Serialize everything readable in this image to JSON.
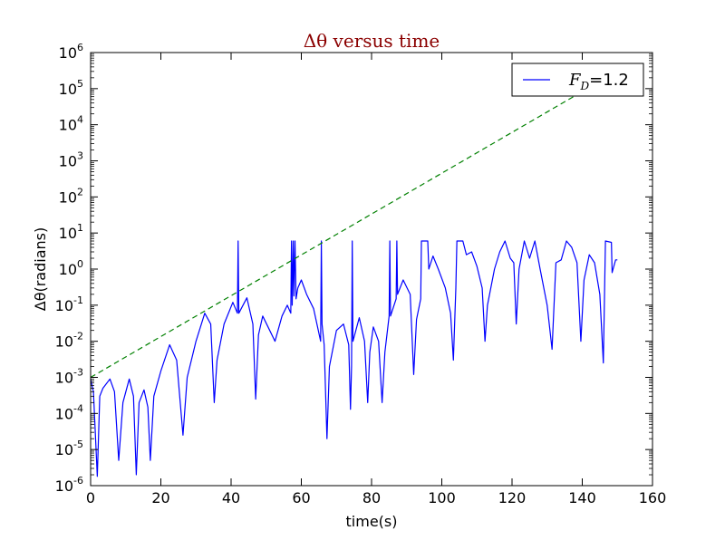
{
  "chart_data": {
    "type": "line",
    "title": "Δθ versus time",
    "xlabel": "time(s)",
    "ylabel": "Δθ(radians)",
    "xlim": [
      0,
      160
    ],
    "ylim": [
      1e-06,
      1000000.0
    ],
    "yscale": "log",
    "grid": false,
    "legend_position": "top-right",
    "x_ticks": [
      0,
      20,
      40,
      60,
      80,
      100,
      120,
      140,
      160
    ],
    "x_tick_labels": [
      "0",
      "20",
      "40",
      "60",
      "80",
      "100",
      "120",
      "140",
      "160"
    ],
    "y_tick_exponents": [
      -6,
      -5,
      -4,
      -3,
      -2,
      -1,
      0,
      1,
      2,
      3,
      4,
      5,
      6
    ],
    "series": [
      {
        "name": "F_D=1.2",
        "legend_label": {
          "main": "F",
          "sub": "D",
          "rest": "=1.2"
        },
        "color": "#0000ff",
        "style": "solid",
        "points": [
          [
            0,
            0.0009
          ],
          [
            0.8,
            0.0004
          ],
          [
            1.9,
            1.8e-06
          ],
          [
            2.6,
            0.0003
          ],
          [
            3.5,
            0.0005
          ],
          [
            5.5,
            0.0009
          ],
          [
            6.8,
            0.0004
          ],
          [
            8,
            5e-06
          ],
          [
            9.2,
            0.0002
          ],
          [
            11,
            0.0009
          ],
          [
            12.2,
            0.0003
          ],
          [
            13,
            2e-06
          ],
          [
            13.8,
            0.0002
          ],
          [
            15.2,
            0.00045
          ],
          [
            16.3,
            0.00015
          ],
          [
            17,
            5e-06
          ],
          [
            18,
            0.0003
          ],
          [
            20,
            0.0015
          ],
          [
            22.5,
            0.008
          ],
          [
            24.5,
            0.003
          ],
          [
            26.3,
            2.5e-05
          ],
          [
            27.5,
            0.001
          ],
          [
            30,
            0.01
          ],
          [
            32.5,
            0.06
          ],
          [
            34.2,
            0.03
          ],
          [
            35.2,
            0.0002
          ],
          [
            36,
            0.003
          ],
          [
            38,
            0.03
          ],
          [
            40.5,
            0.12
          ],
          [
            41.8,
            0.06
          ],
          [
            42,
            6
          ],
          [
            42.2,
            0.06
          ],
          [
            44.5,
            0.16
          ],
          [
            46.2,
            0.03
          ],
          [
            47,
            0.00025
          ],
          [
            47.8,
            0.015
          ],
          [
            49,
            0.05
          ],
          [
            51,
            0.02
          ],
          [
            52.5,
            0.01
          ],
          [
            54.5,
            0.05
          ],
          [
            56,
            0.1
          ],
          [
            57,
            0.06
          ],
          [
            57.2,
            6
          ],
          [
            57.4,
            0.1
          ],
          [
            57.7,
            6
          ],
          [
            57.9,
            0.18
          ],
          [
            58.2,
            6
          ],
          [
            58.5,
            0.15
          ],
          [
            59,
            0.3
          ],
          [
            60,
            0.5
          ],
          [
            61.5,
            0.2
          ],
          [
            63.5,
            0.08
          ],
          [
            65.5,
            0.01
          ],
          [
            65.7,
            6
          ],
          [
            65.9,
            0.03
          ],
          [
            66.5,
            0.008
          ],
          [
            67.3,
            2e-05
          ],
          [
            68,
            0.002
          ],
          [
            70,
            0.02
          ],
          [
            72,
            0.03
          ],
          [
            73.5,
            0.008
          ],
          [
            74,
            0.00013
          ],
          [
            74.3,
            0.002
          ],
          [
            74.5,
            6
          ],
          [
            74.7,
            0.01
          ],
          [
            76.5,
            0.045
          ],
          [
            78,
            0.01
          ],
          [
            78.9,
            0.0002
          ],
          [
            79.5,
            0.005
          ],
          [
            80.5,
            0.025
          ],
          [
            82,
            0.01
          ],
          [
            83,
            0.0002
          ],
          [
            83.8,
            0.005
          ],
          [
            85,
            0.05
          ],
          [
            85.2,
            6
          ],
          [
            85.4,
            0.05
          ],
          [
            87,
            0.15
          ],
          [
            87.2,
            6
          ],
          [
            87.4,
            0.2
          ],
          [
            89,
            0.5
          ],
          [
            91,
            0.2
          ],
          [
            92,
            0.0012
          ],
          [
            92.8,
            0.04
          ],
          [
            94,
            0.15
          ],
          [
            94.2,
            6
          ],
          [
            96,
            6
          ],
          [
            96.3,
            1
          ],
          [
            97.5,
            2.3
          ],
          [
            99,
            1
          ],
          [
            101,
            0.3
          ],
          [
            102.5,
            0.06
          ],
          [
            103.3,
            0.003
          ],
          [
            104,
            0.3
          ],
          [
            104.3,
            6
          ],
          [
            106,
            6
          ],
          [
            107,
            2.5
          ],
          [
            108.5,
            3
          ],
          [
            110,
            1.2
          ],
          [
            111.5,
            0.3
          ],
          [
            112.3,
            0.01
          ],
          [
            113,
            0.1
          ],
          [
            115,
            1
          ],
          [
            116.5,
            3
          ],
          [
            118,
            6
          ],
          [
            119.5,
            2
          ],
          [
            120.5,
            1.5
          ],
          [
            121.2,
            0.03
          ],
          [
            122,
            1
          ],
          [
            123.5,
            6
          ],
          [
            125,
            2
          ],
          [
            126.5,
            6
          ],
          [
            128,
            1
          ],
          [
            130,
            0.1
          ],
          [
            131.4,
            0.006
          ],
          [
            132.5,
            1.5
          ],
          [
            134,
            1.8
          ],
          [
            135.5,
            6
          ],
          [
            137,
            4
          ],
          [
            138.5,
            1.5
          ],
          [
            139.6,
            0.01
          ],
          [
            140.5,
            0.5
          ],
          [
            142,
            2.5
          ],
          [
            143.5,
            1.5
          ],
          [
            145,
            0.2
          ],
          [
            146,
            0.0025
          ],
          [
            146.6,
            6
          ],
          [
            148.3,
            5.5
          ],
          [
            148.5,
            0.8
          ],
          [
            149.5,
            1.8
          ],
          [
            150,
            1.8
          ]
        ]
      },
      {
        "name": "",
        "color": "#008000",
        "style": "dashed",
        "points": [
          [
            0,
            0.001
          ],
          [
            137.5,
            60000.0
          ]
        ]
      }
    ]
  }
}
